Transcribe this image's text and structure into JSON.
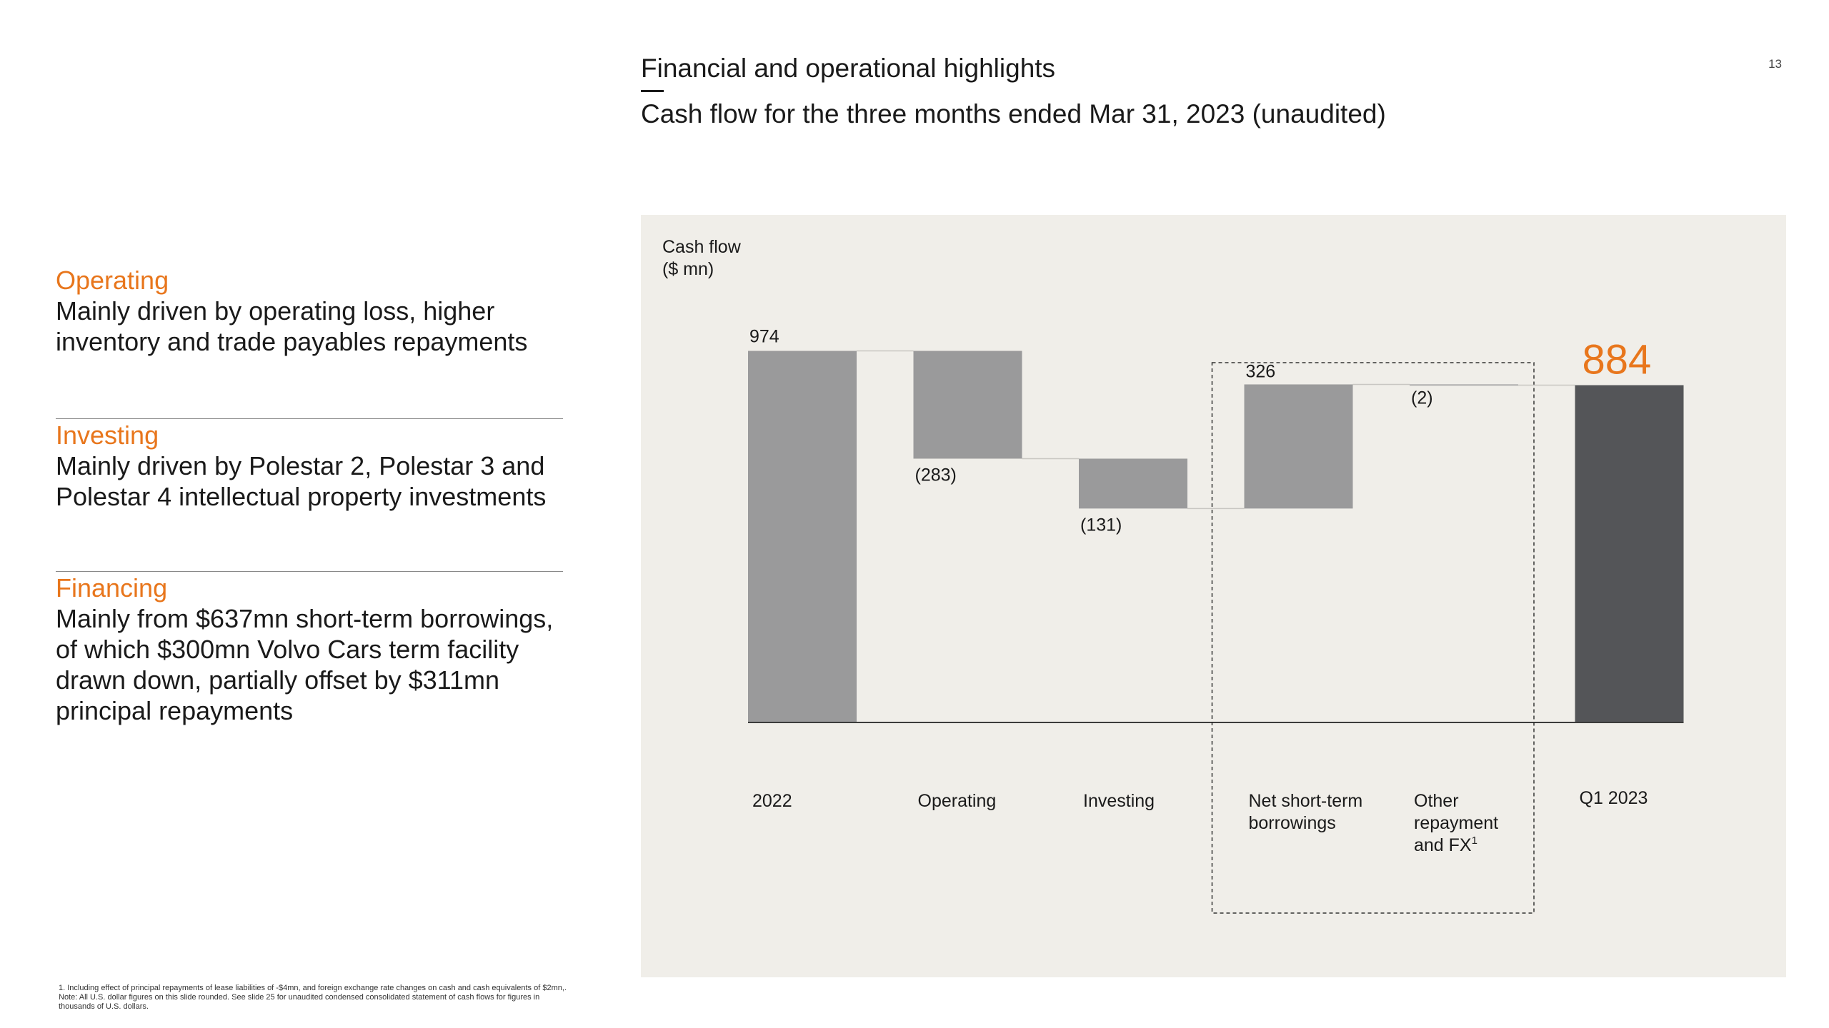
{
  "page_number": "13",
  "header": {
    "section": "Financial and operational highlights",
    "title": "Cash flow for the three months ended Mar 31, 2023 (unaudited)"
  },
  "highlights": [
    {
      "category": "Operating",
      "description": "Mainly driven by operating loss, higher inventory and trade payables repayments"
    },
    {
      "category": "Investing",
      "description": "Mainly driven by Polestar 2, Polestar 3 and Polestar 4 intellectual property investments"
    },
    {
      "category": "Financing",
      "description": "Mainly from $637mn short-term borrowings, of which $300mn Volvo Cars term facility drawn down, partially offset by $311mn principal repayments"
    }
  ],
  "footnote": {
    "note1": "1.      Including effect of principal repayments of lease liabilities of -$4mn, and foreign exchange rate changes on cash and cash equivalents of $2mn,.",
    "note2": "Note: All U.S. dollar figures on this slide rounded. See slide 25 for unaudited condensed consolidated statement of cash flows for figures in thousands of U.S. dollars."
  },
  "colors": {
    "accent": "#e8761c",
    "bar_grey": "#9a9a9b",
    "bar_total": "#545558",
    "panel_bg": "#f0eee9"
  },
  "chart_data": {
    "type": "waterfall",
    "ylabel": [
      "Cash flow",
      "($ mn)"
    ],
    "ylim": [
      0,
      1200
    ],
    "highlight_group": [
      "Net short-term borrowings",
      "Other repayment and FX"
    ],
    "steps": [
      {
        "label": [
          "2022"
        ],
        "value": 974,
        "kind": "total",
        "value_label": "974"
      },
      {
        "label": [
          "Operating"
        ],
        "value": -283,
        "kind": "delta",
        "value_label": "(283)"
      },
      {
        "label": [
          "Investing"
        ],
        "value": -131,
        "kind": "delta",
        "value_label": "(131)"
      },
      {
        "label": [
          "Net short-term",
          "borrowings"
        ],
        "value": 326,
        "kind": "delta",
        "value_label": "326"
      },
      {
        "label": [
          "Other",
          "repayment",
          "and FX"
        ],
        "footnote_mark": "1",
        "value": -2,
        "kind": "delta",
        "value_label": "(2)"
      },
      {
        "label": [
          "Q1 2023"
        ],
        "value": 884,
        "kind": "result",
        "value_label": "884"
      }
    ]
  }
}
